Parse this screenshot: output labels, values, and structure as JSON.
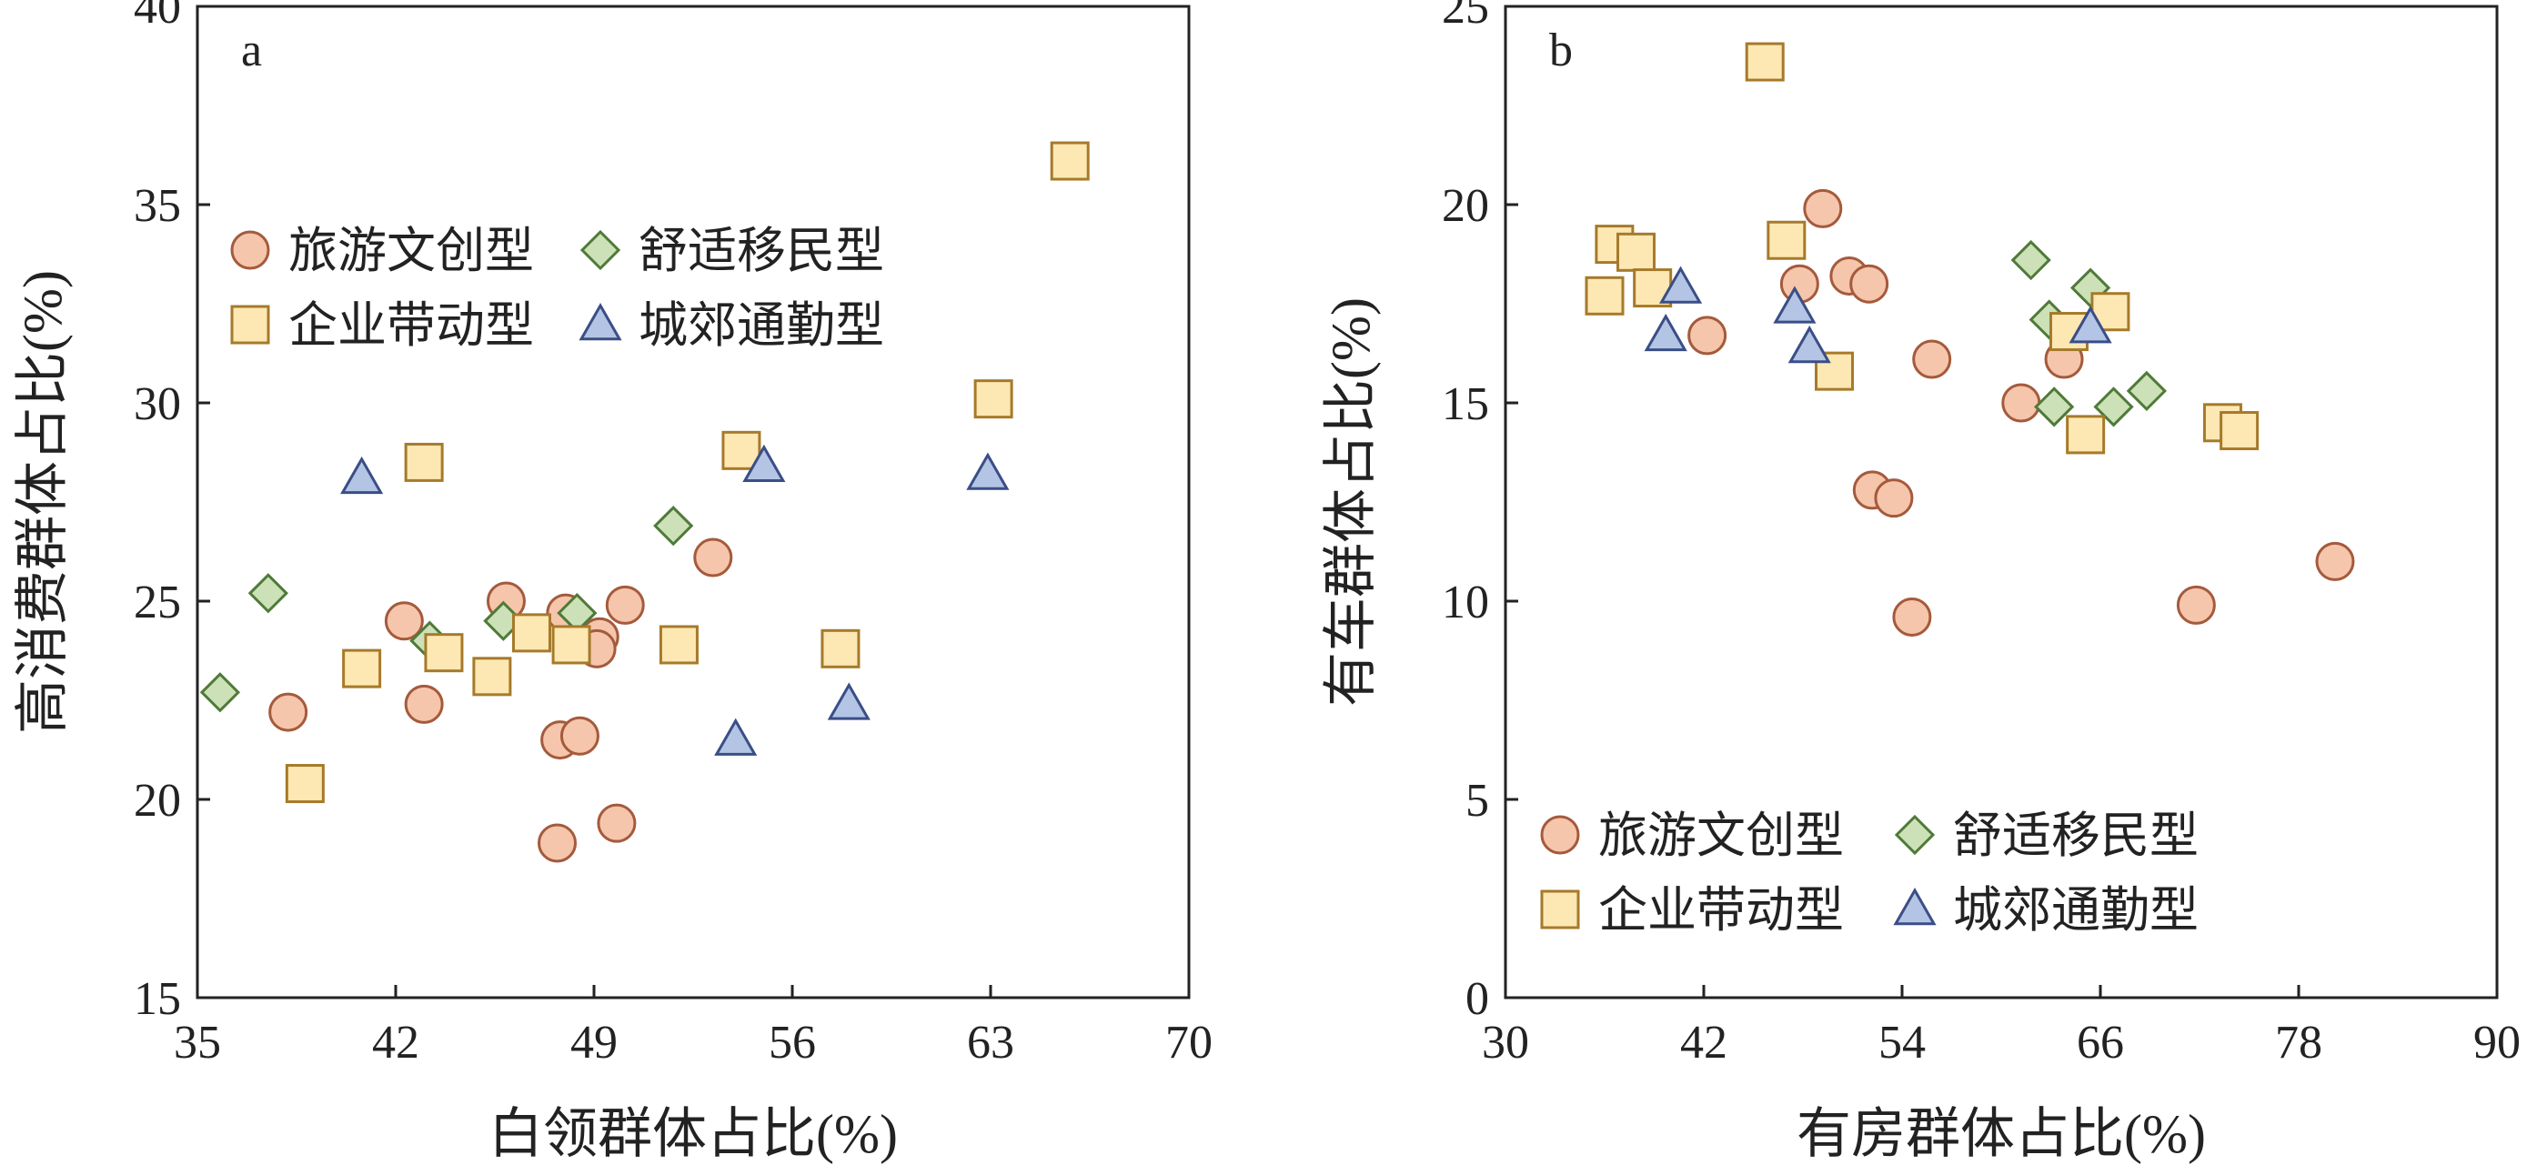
{
  "chart_data": [
    {
      "type": "scatter",
      "panel_label": "a",
      "xlabel": "白领群体占比(%)",
      "ylabel": "高消费群体占比(%)",
      "xlim": [
        35,
        70
      ],
      "ylim": [
        15,
        40
      ],
      "xticks": [
        35,
        42,
        49,
        56,
        63,
        70
      ],
      "yticks": [
        15,
        20,
        25,
        30,
        35,
        40
      ],
      "grid": false,
      "legend_position": "upper-left",
      "series": [
        {
          "name": "旅游文创型",
          "marker": "circle",
          "fill": "#f5c6ac",
          "stroke": "#a55a3c",
          "points": [
            [
              38.2,
              22.2
            ],
            [
              42.3,
              24.5
            ],
            [
              43.0,
              22.4
            ],
            [
              45.9,
              25.0
            ],
            [
              47.8,
              21.5
            ],
            [
              48.0,
              24.7
            ],
            [
              47.7,
              18.9
            ],
            [
              48.5,
              21.6
            ],
            [
              49.2,
              24.1
            ],
            [
              49.1,
              23.8
            ],
            [
              50.1,
              24.9
            ],
            [
              49.8,
              19.4
            ],
            [
              53.2,
              26.1
            ]
          ]
        },
        {
          "name": "舒适移民型",
          "marker": "diamond",
          "fill": "#cde1b8",
          "stroke": "#4f7a38",
          "points": [
            [
              35.8,
              22.7
            ],
            [
              37.5,
              25.2
            ],
            [
              43.2,
              24.0
            ],
            [
              45.8,
              24.5
            ],
            [
              48.4,
              24.7
            ],
            [
              51.8,
              26.9
            ]
          ]
        },
        {
          "name": "企业带动型",
          "marker": "square",
          "fill": "#fde8b4",
          "stroke": "#a67a2a",
          "points": [
            [
              38.8,
              20.4
            ],
            [
              40.8,
              23.3
            ],
            [
              43.0,
              28.5
            ],
            [
              43.7,
              23.7
            ],
            [
              45.4,
              23.1
            ],
            [
              46.8,
              24.2
            ],
            [
              48.2,
              23.9
            ],
            [
              52.0,
              23.9
            ],
            [
              54.2,
              28.8
            ],
            [
              57.7,
              23.8
            ],
            [
              63.1,
              30.1
            ],
            [
              65.8,
              36.1
            ]
          ]
        },
        {
          "name": "城郊通勤型",
          "marker": "triangle",
          "fill": "#b4c4e4",
          "stroke": "#3a4e86",
          "points": [
            [
              40.8,
              28.1
            ],
            [
              54.0,
              21.5
            ],
            [
              55.0,
              28.4
            ],
            [
              58.0,
              22.4
            ],
            [
              62.9,
              28.2
            ]
          ]
        }
      ]
    },
    {
      "type": "scatter",
      "panel_label": "b",
      "xlabel": "有房群体占比(%)",
      "ylabel": "有车群体占比(%)",
      "xlim": [
        30,
        90
      ],
      "ylim": [
        0,
        25
      ],
      "xticks": [
        30,
        42,
        54,
        66,
        78,
        90
      ],
      "yticks": [
        0,
        5,
        10,
        15,
        20,
        25
      ],
      "grid": false,
      "legend_position": "lower-left",
      "series": [
        {
          "name": "旅游文创型",
          "marker": "circle",
          "fill": "#f5c6ac",
          "stroke": "#a55a3c",
          "points": [
            [
              42.2,
              16.7
            ],
            [
              47.8,
              18.0
            ],
            [
              49.2,
              19.9
            ],
            [
              50.8,
              18.2
            ],
            [
              52.0,
              18.0
            ],
            [
              52.2,
              12.8
            ],
            [
              53.5,
              12.6
            ],
            [
              54.6,
              9.6
            ],
            [
              55.8,
              16.1
            ],
            [
              61.2,
              15.0
            ],
            [
              63.8,
              16.1
            ],
            [
              71.8,
              9.9
            ],
            [
              80.2,
              11.0
            ]
          ]
        },
        {
          "name": "舒适移民型",
          "marker": "diamond",
          "fill": "#cde1b8",
          "stroke": "#4f7a38",
          "points": [
            [
              61.8,
              18.6
            ],
            [
              63.2,
              14.9
            ],
            [
              62.9,
              17.1
            ],
            [
              65.4,
              17.9
            ],
            [
              66.8,
              14.9
            ],
            [
              68.8,
              15.3
            ]
          ]
        },
        {
          "name": "企业带动型",
          "marker": "square",
          "fill": "#fde8b4",
          "stroke": "#a67a2a",
          "points": [
            [
              36.0,
              17.7
            ],
            [
              36.6,
              19.0
            ],
            [
              37.9,
              18.8
            ],
            [
              38.9,
              17.9
            ],
            [
              45.7,
              23.6
            ],
            [
              47.0,
              19.1
            ],
            [
              49.9,
              15.8
            ],
            [
              64.1,
              16.8
            ],
            [
              65.1,
              14.2
            ],
            [
              66.6,
              17.3
            ],
            [
              73.4,
              14.5
            ],
            [
              74.4,
              14.3
            ]
          ]
        },
        {
          "name": "城郊通勤型",
          "marker": "triangle",
          "fill": "#b4c4e4",
          "stroke": "#3a4e86",
          "points": [
            [
              39.7,
              16.7
            ],
            [
              40.6,
              17.9
            ],
            [
              47.5,
              17.4
            ],
            [
              48.4,
              16.4
            ],
            [
              65.4,
              16.9
            ]
          ]
        }
      ]
    }
  ]
}
